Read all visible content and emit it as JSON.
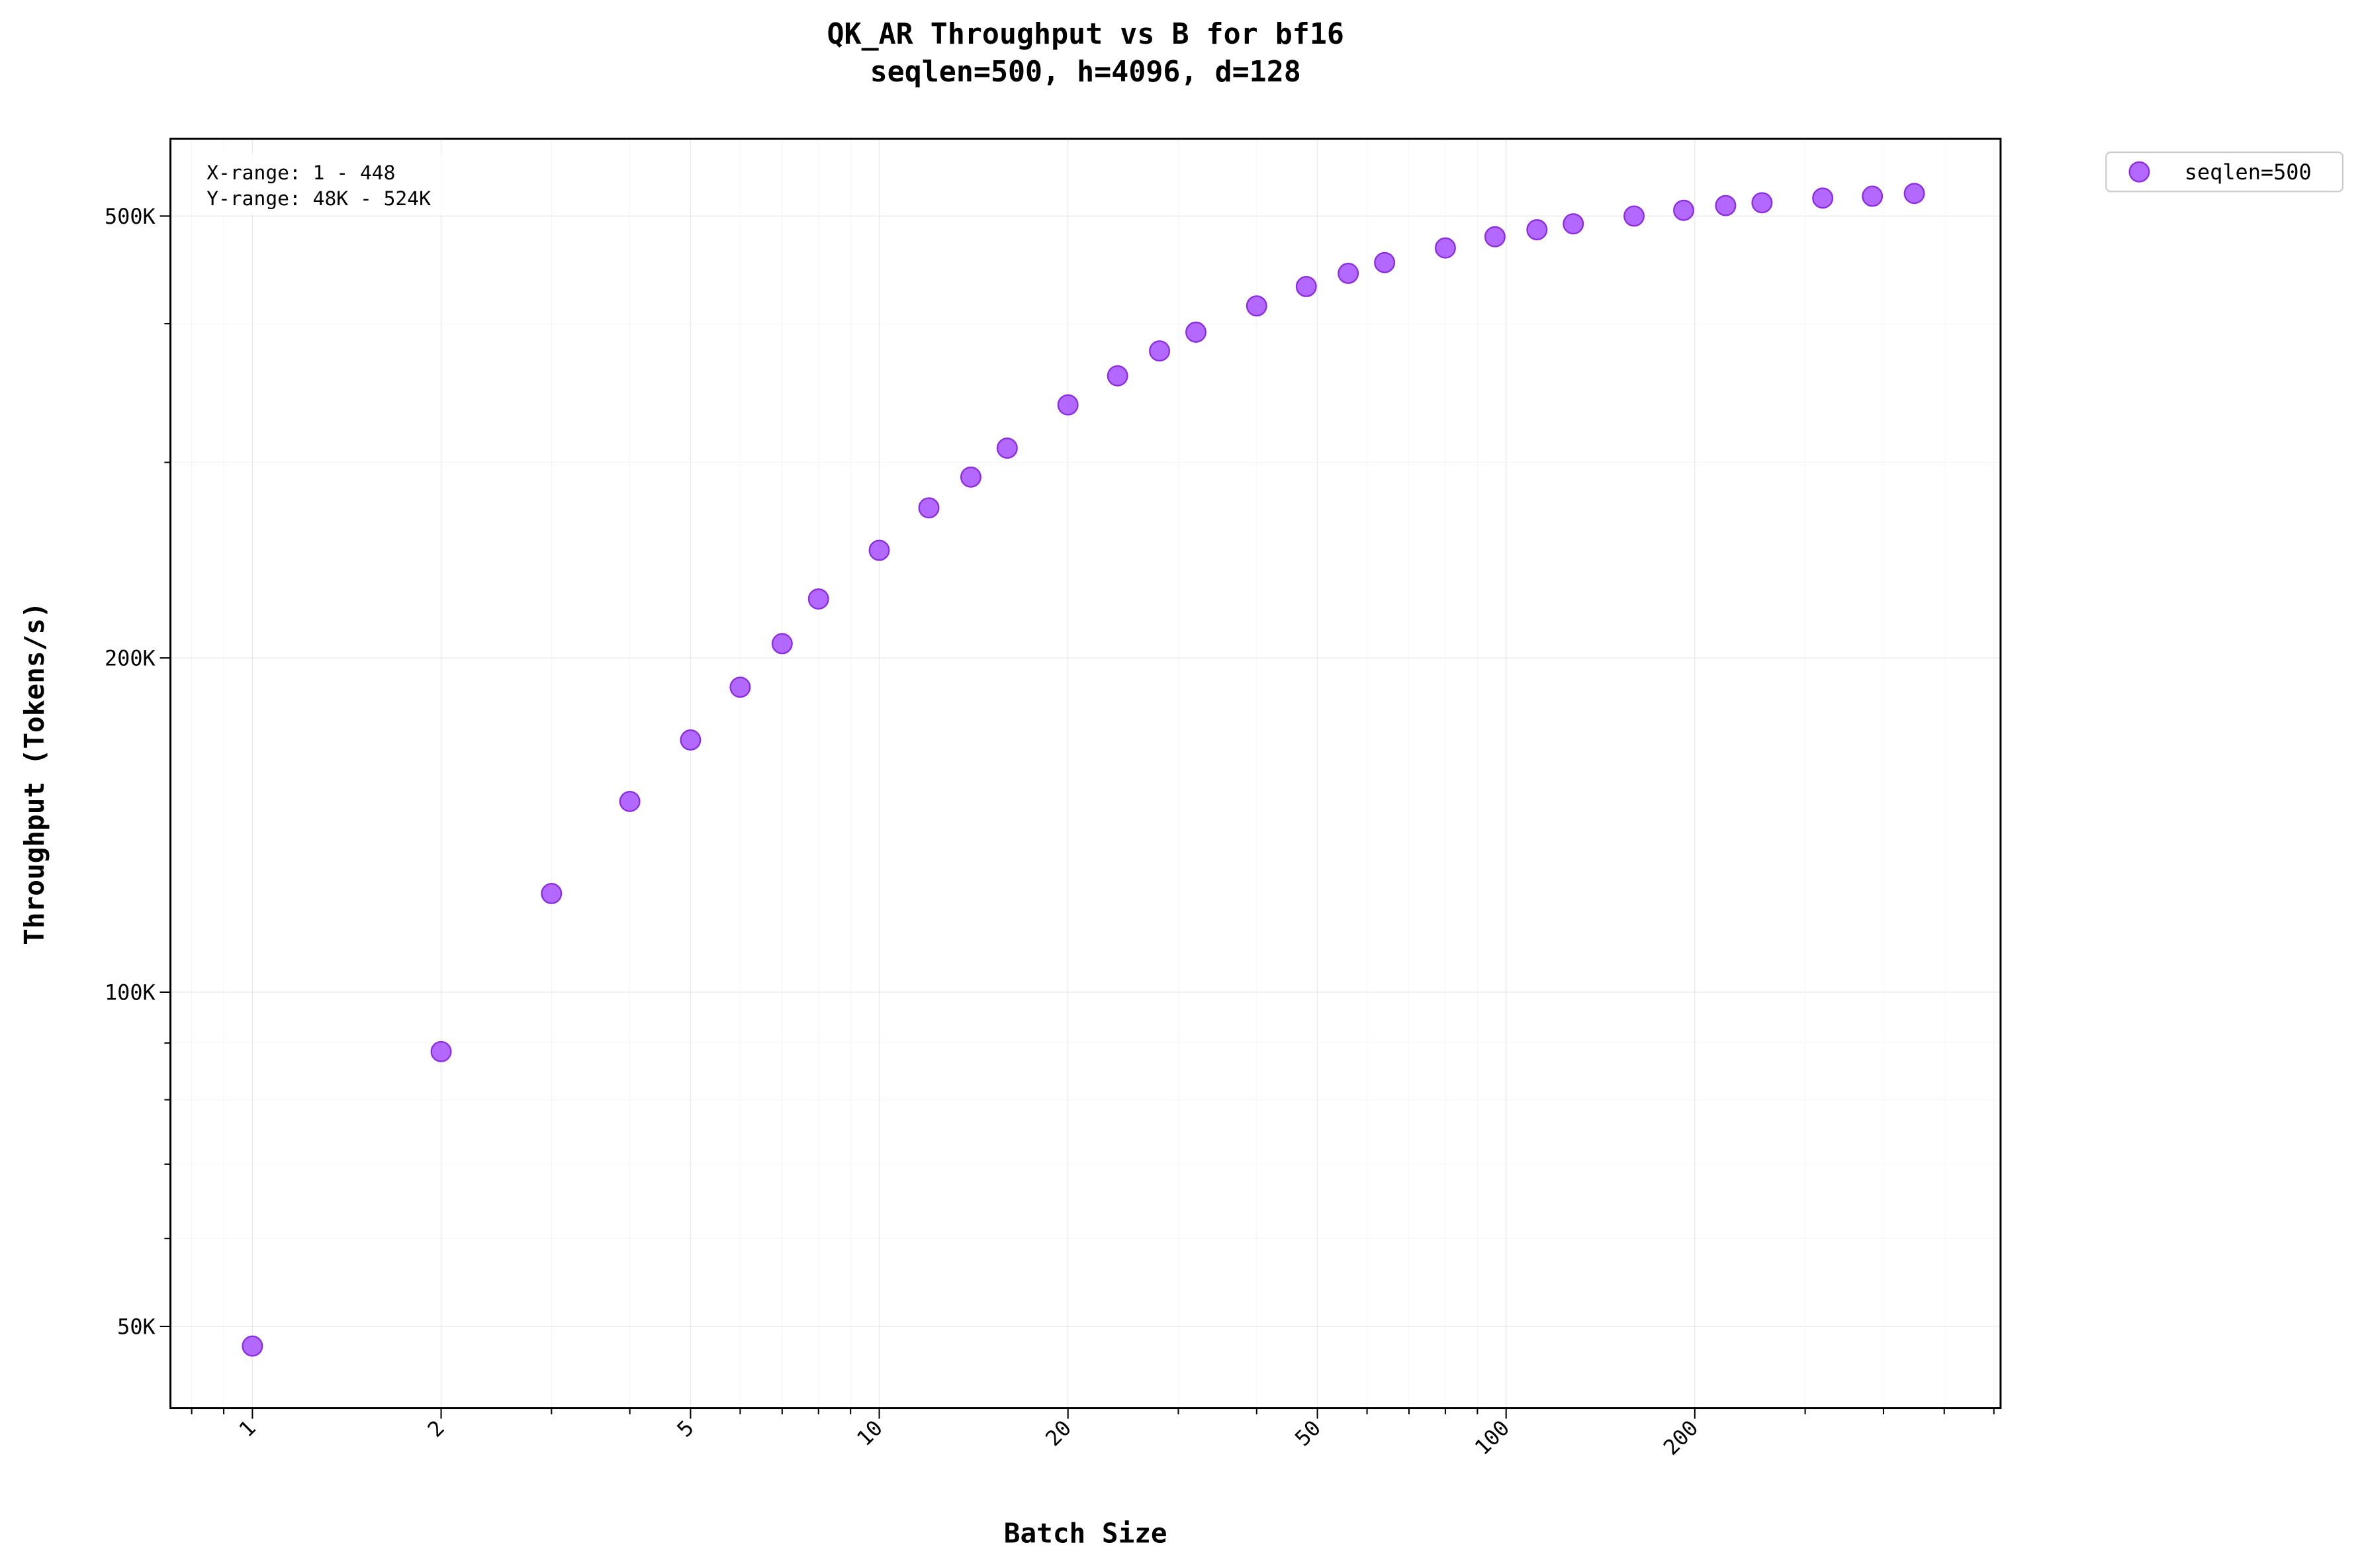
{
  "chart_data": {
    "type": "scatter",
    "title": "QK_AR Throughput vs B for bf16",
    "subtitle": "seqlen=500, h=4096, d=128",
    "xlabel": "Batch Size",
    "ylabel": "Throughput (Tokens/s)",
    "xscale": "log",
    "yscale": "log",
    "xlim": [
      0.74,
      615
    ],
    "ylim": [
      42200,
      587000
    ],
    "grid": true,
    "legend_position": "outside-top-right",
    "x_ticks": [
      1,
      2,
      5,
      10,
      20,
      50,
      100,
      200
    ],
    "x_tick_labels": [
      "1",
      "2",
      "5",
      "10",
      "20",
      "50",
      "100",
      "200"
    ],
    "y_ticks": [
      50000,
      100000,
      200000,
      500000
    ],
    "y_tick_labels": [
      "50K",
      "100K",
      "200K",
      "500K"
    ],
    "annotation": [
      "X-range: 1 - 448",
      "Y-range: 48K - 524K"
    ],
    "series": [
      {
        "name": "seqlen=500",
        "color": "#a64dff",
        "x": [
          1,
          2,
          3,
          4,
          5,
          6,
          7,
          8,
          10,
          12,
          14,
          16,
          20,
          24,
          28,
          32,
          40,
          48,
          56,
          64,
          80,
          96,
          112,
          128,
          160,
          192,
          224,
          256,
          320,
          384,
          448
        ],
        "y": [
          48000,
          88400,
          122700,
          148500,
          168700,
          188200,
          206000,
          226000,
          250000,
          273000,
          291000,
          309000,
          338000,
          359000,
          378000,
          393000,
          415000,
          432000,
          444000,
          454000,
          468000,
          479000,
          486000,
          492000,
          500000,
          506000,
          511000,
          514000,
          519000,
          521000,
          524000
        ]
      }
    ]
  }
}
